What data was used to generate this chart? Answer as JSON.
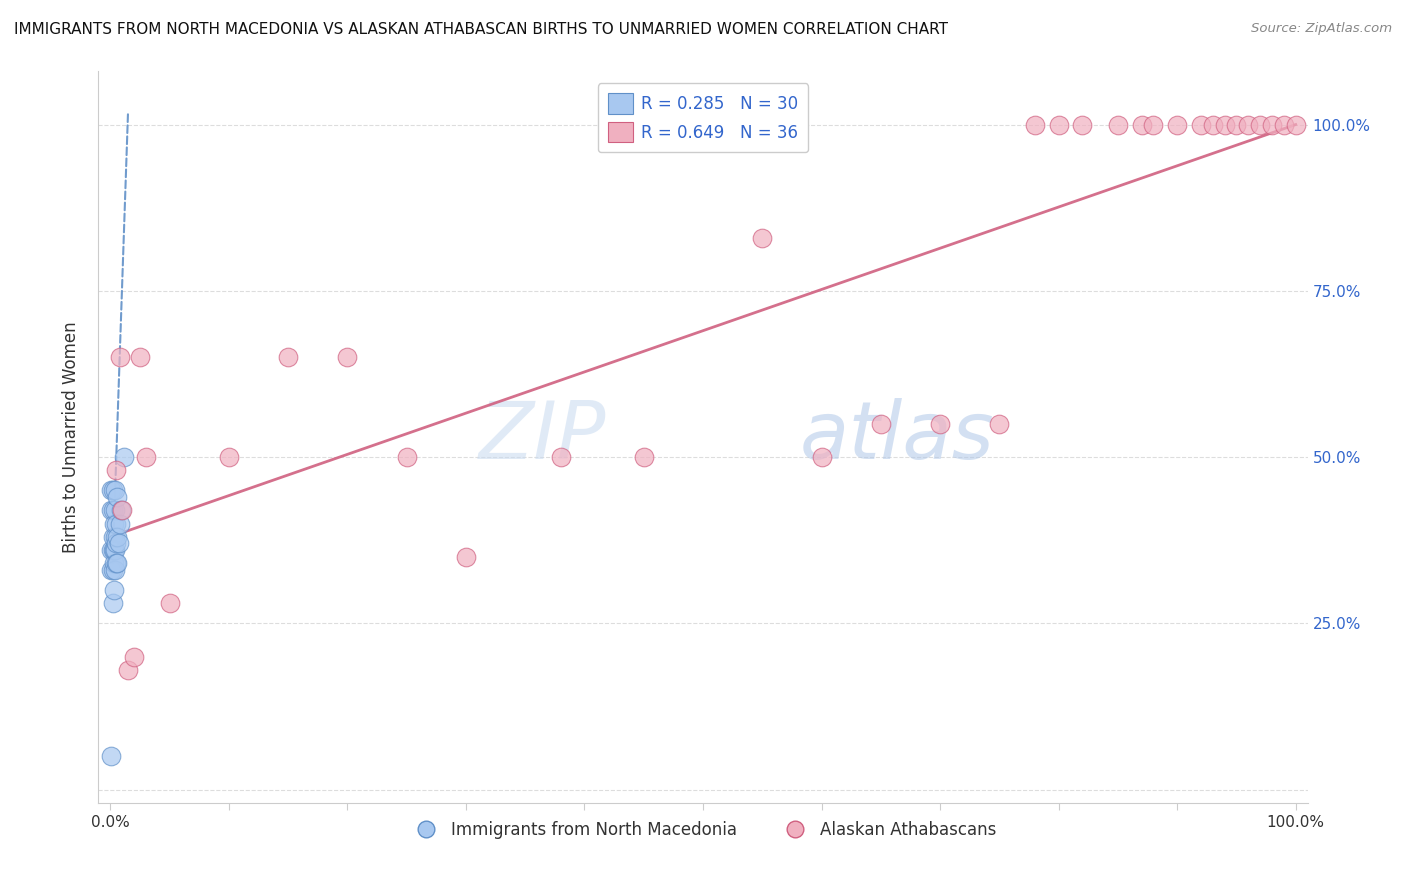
{
  "title": "IMMIGRANTS FROM NORTH MACEDONIA VS ALASKAN ATHABASCAN BIRTHS TO UNMARRIED WOMEN CORRELATION CHART",
  "source": "Source: ZipAtlas.com",
  "ylabel": "Births to Unmarried Women",
  "legend_label1": "R = 0.285   N = 30",
  "legend_label2": "R = 0.649   N = 36",
  "legend_bottom1": "Immigrants from North Macedonia",
  "legend_bottom2": "Alaskan Athabascans",
  "watermark_zip": "ZIP",
  "watermark_atlas": "atlas",
  "blue_scatter_x": [
    0.001,
    0.001,
    0.001,
    0.001,
    0.001,
    0.002,
    0.002,
    0.002,
    0.002,
    0.002,
    0.002,
    0.003,
    0.003,
    0.003,
    0.003,
    0.004,
    0.004,
    0.004,
    0.004,
    0.004,
    0.005,
    0.005,
    0.005,
    0.006,
    0.006,
    0.006,
    0.007,
    0.008,
    0.009,
    0.012
  ],
  "blue_scatter_y": [
    0.05,
    0.33,
    0.36,
    0.42,
    0.45,
    0.28,
    0.33,
    0.36,
    0.38,
    0.42,
    0.45,
    0.3,
    0.34,
    0.36,
    0.4,
    0.33,
    0.36,
    0.38,
    0.42,
    0.45,
    0.34,
    0.37,
    0.4,
    0.34,
    0.38,
    0.44,
    0.37,
    0.4,
    0.42,
    0.5
  ],
  "pink_scatter_x": [
    0.005,
    0.008,
    0.01,
    0.015,
    0.02,
    0.025,
    0.03,
    0.05,
    0.1,
    0.15,
    0.2,
    0.25,
    0.3,
    0.38,
    0.45,
    0.55,
    0.6,
    0.65,
    0.7,
    0.75,
    0.78,
    0.8,
    0.82,
    0.85,
    0.87,
    0.88,
    0.9,
    0.92,
    0.93,
    0.94,
    0.95,
    0.96,
    0.97,
    0.98,
    0.99,
    1.0
  ],
  "pink_scatter_y": [
    0.48,
    0.65,
    0.42,
    0.18,
    0.2,
    0.65,
    0.5,
    0.28,
    0.5,
    0.65,
    0.65,
    0.5,
    0.35,
    0.5,
    0.5,
    0.83,
    0.5,
    0.55,
    0.55,
    0.55,
    1.0,
    1.0,
    1.0,
    1.0,
    1.0,
    1.0,
    1.0,
    1.0,
    1.0,
    1.0,
    1.0,
    1.0,
    1.0,
    1.0,
    1.0,
    1.0
  ],
  "blue_line_x": [
    0.002,
    0.015
  ],
  "blue_line_y": [
    0.34,
    1.02
  ],
  "pink_line_x": [
    0.0,
    1.0
  ],
  "pink_line_y": [
    0.38,
    1.0
  ],
  "blue_color": "#a8c8f0",
  "pink_color": "#f0b0c0",
  "blue_edge": "#6090c8",
  "pink_edge": "#d06080",
  "grid_color": "#dddddd",
  "title_color": "#111111",
  "source_color": "#888888",
  "right_axis_color": "#3366cc",
  "scatter_size": 180,
  "background": "#ffffff",
  "xlim": [
    -0.01,
    1.01
  ],
  "ylim": [
    -0.02,
    1.08
  ],
  "x_tick_positions": [
    0.0,
    0.2,
    0.4,
    0.5,
    0.6,
    0.8,
    1.0
  ],
  "y_tick_positions": [
    0.0,
    0.25,
    0.5,
    0.75,
    1.0
  ],
  "y_tick_labels_right": [
    "",
    "25.0%",
    "50.0%",
    "75.0%",
    "100.0%"
  ]
}
